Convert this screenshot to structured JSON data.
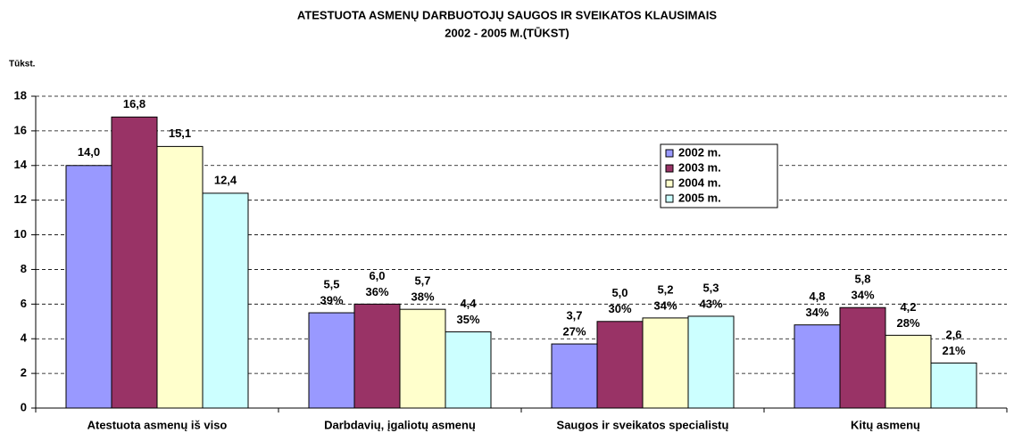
{
  "chart_data": {
    "type": "bar",
    "title": "ATESTUOTA ASMENŲ DARBUOTOJŲ SAUGOS IR SVEIKATOS KLAUSIMAIS",
    "subtitle": "2002 - 2005 M.(TŪKST)",
    "y_label": "Tūkst.",
    "categories": [
      "Atestuota asmenų iš viso",
      "Darbdavių, įgaliotų asmenų",
      "Saugos ir sveikatos specialistų",
      "Kitų asmenų"
    ],
    "series": [
      {
        "name": "2002 m.",
        "color": "#9999ff",
        "values": [
          14.0,
          5.5,
          3.7,
          4.8
        ],
        "value_labels": [
          "14,0",
          "5,5",
          "3,7",
          "4,8"
        ],
        "percent_labels": [
          null,
          "39%",
          "27%",
          "34%"
        ]
      },
      {
        "name": "2003 m.",
        "color": "#993366",
        "values": [
          16.8,
          6.0,
          5.0,
          5.8
        ],
        "value_labels": [
          "16,8",
          "6,0",
          "5,0",
          "5,8"
        ],
        "percent_labels": [
          null,
          "36%",
          "30%",
          "34%"
        ]
      },
      {
        "name": "2004 m.",
        "color": "#ffffcc",
        "values": [
          15.1,
          5.7,
          5.2,
          4.2
        ],
        "value_labels": [
          "15,1",
          "5,7",
          "5,2",
          "4,2"
        ],
        "percent_labels": [
          null,
          "38%",
          "34%",
          "28%"
        ]
      },
      {
        "name": "2005 m.",
        "color": "#ccffff",
        "values": [
          12.4,
          4.4,
          5.3,
          2.6
        ],
        "value_labels": [
          "12,4",
          "4,4",
          "5,3",
          "2,6"
        ],
        "percent_labels": [
          null,
          "35%",
          "43%",
          "21%"
        ]
      }
    ],
    "ylim": [
      0,
      18
    ],
    "yticks": [
      0,
      2,
      4,
      6,
      8,
      10,
      12,
      14,
      16,
      18
    ],
    "grid": true,
    "legend": "upper right"
  }
}
